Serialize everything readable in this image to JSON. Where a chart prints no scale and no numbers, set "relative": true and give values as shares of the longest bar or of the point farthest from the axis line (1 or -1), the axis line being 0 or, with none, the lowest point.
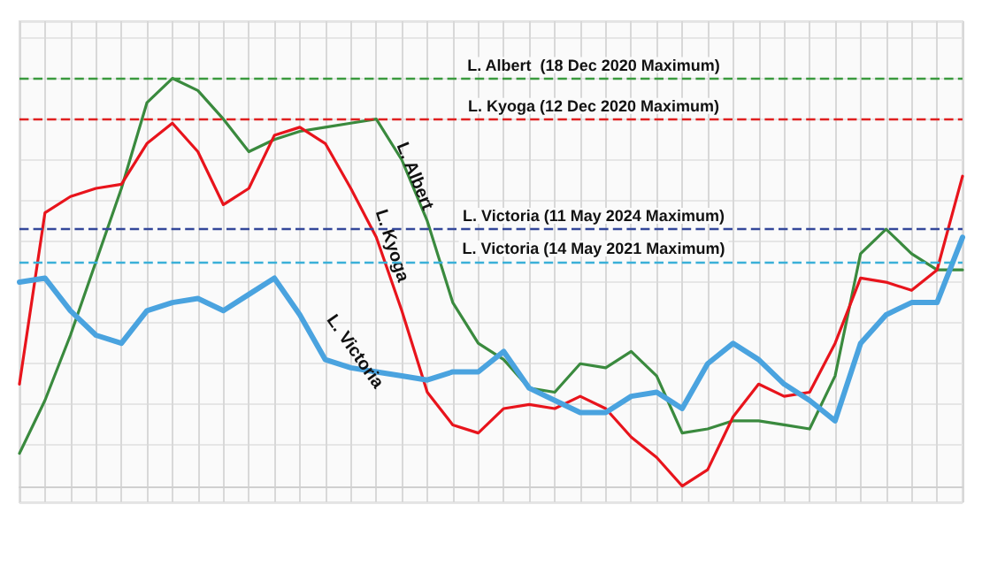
{
  "chart_data": {
    "type": "line",
    "relative": true,
    "grid": true,
    "line_style": "solid",
    "marker": "none",
    "categories": [
      null,
      null,
      null,
      null,
      null,
      null,
      null,
      null,
      null,
      null,
      null,
      null,
      null,
      null,
      null,
      null,
      null,
      null,
      null,
      null,
      null,
      null,
      null,
      null,
      null,
      null,
      null,
      null,
      null,
      null,
      null,
      null,
      null,
      null,
      null,
      null,
      null,
      null
    ],
    "series": [
      {
        "name": "L. Albert",
        "color": "#3a8a3e",
        "values": [
          0.08,
          0.21,
          0.37,
          0.55,
          0.73,
          0.94,
          1.0,
          0.97,
          0.9,
          0.82,
          0.85,
          0.87,
          0.88,
          0.89,
          0.9,
          0.8,
          0.65,
          0.45,
          0.35,
          0.31,
          0.24,
          0.23,
          0.3,
          0.29,
          0.33,
          0.27,
          0.13,
          0.14,
          0.16,
          0.16,
          0.15,
          0.14,
          0.27,
          0.57,
          0.63,
          0.57,
          0.53,
          0.53
        ]
      },
      {
        "name": "L. Kyoga",
        "color": "#e8141c",
        "values": [
          0.25,
          0.67,
          0.71,
          0.73,
          0.74,
          0.84,
          0.89,
          0.82,
          0.69,
          0.73,
          0.86,
          0.88,
          0.84,
          0.73,
          0.61,
          0.43,
          0.23,
          0.15,
          0.13,
          0.19,
          0.2,
          0.19,
          0.22,
          0.19,
          0.12,
          0.07,
          0.0,
          0.04,
          0.17,
          0.25,
          0.22,
          0.23,
          0.35,
          0.51,
          0.5,
          0.48,
          0.53,
          0.76
        ]
      },
      {
        "name": "L. Victoria",
        "color": "#4aa3df",
        "values": [
          0.5,
          0.51,
          0.43,
          0.37,
          0.35,
          0.43,
          0.45,
          0.46,
          0.43,
          0.47,
          0.51,
          0.42,
          0.31,
          0.29,
          0.28,
          0.27,
          0.26,
          0.28,
          0.28,
          0.33,
          0.24,
          0.21,
          0.18,
          0.18,
          0.22,
          0.23,
          0.19,
          0.3,
          0.35,
          0.31,
          0.25,
          0.21,
          0.16,
          0.35,
          0.42,
          0.45,
          0.45,
          0.61
        ]
      }
    ],
    "ref_lines": [
      {
        "axis": "y",
        "value": 1.0,
        "label": "L. Albert  (18 Dec 2020 Maximum)",
        "color": "#3a9a3e",
        "line_style": "dashed"
      },
      {
        "axis": "y",
        "value": 0.9,
        "label": "L. Kyoga (12 Dec 2020 Maximum)",
        "color": "#e02020",
        "line_style": "dashed"
      },
      {
        "axis": "y",
        "value": 0.63,
        "label": "L. Victoria (11 May 2024 Maximum)",
        "color": "#34479a",
        "line_style": "dashed"
      },
      {
        "axis": "y",
        "value": 0.55,
        "label": "L. Victoria (14 May 2021 Maximum)",
        "color": "#3ab0d8",
        "line_style": "dashed"
      }
    ]
  }
}
